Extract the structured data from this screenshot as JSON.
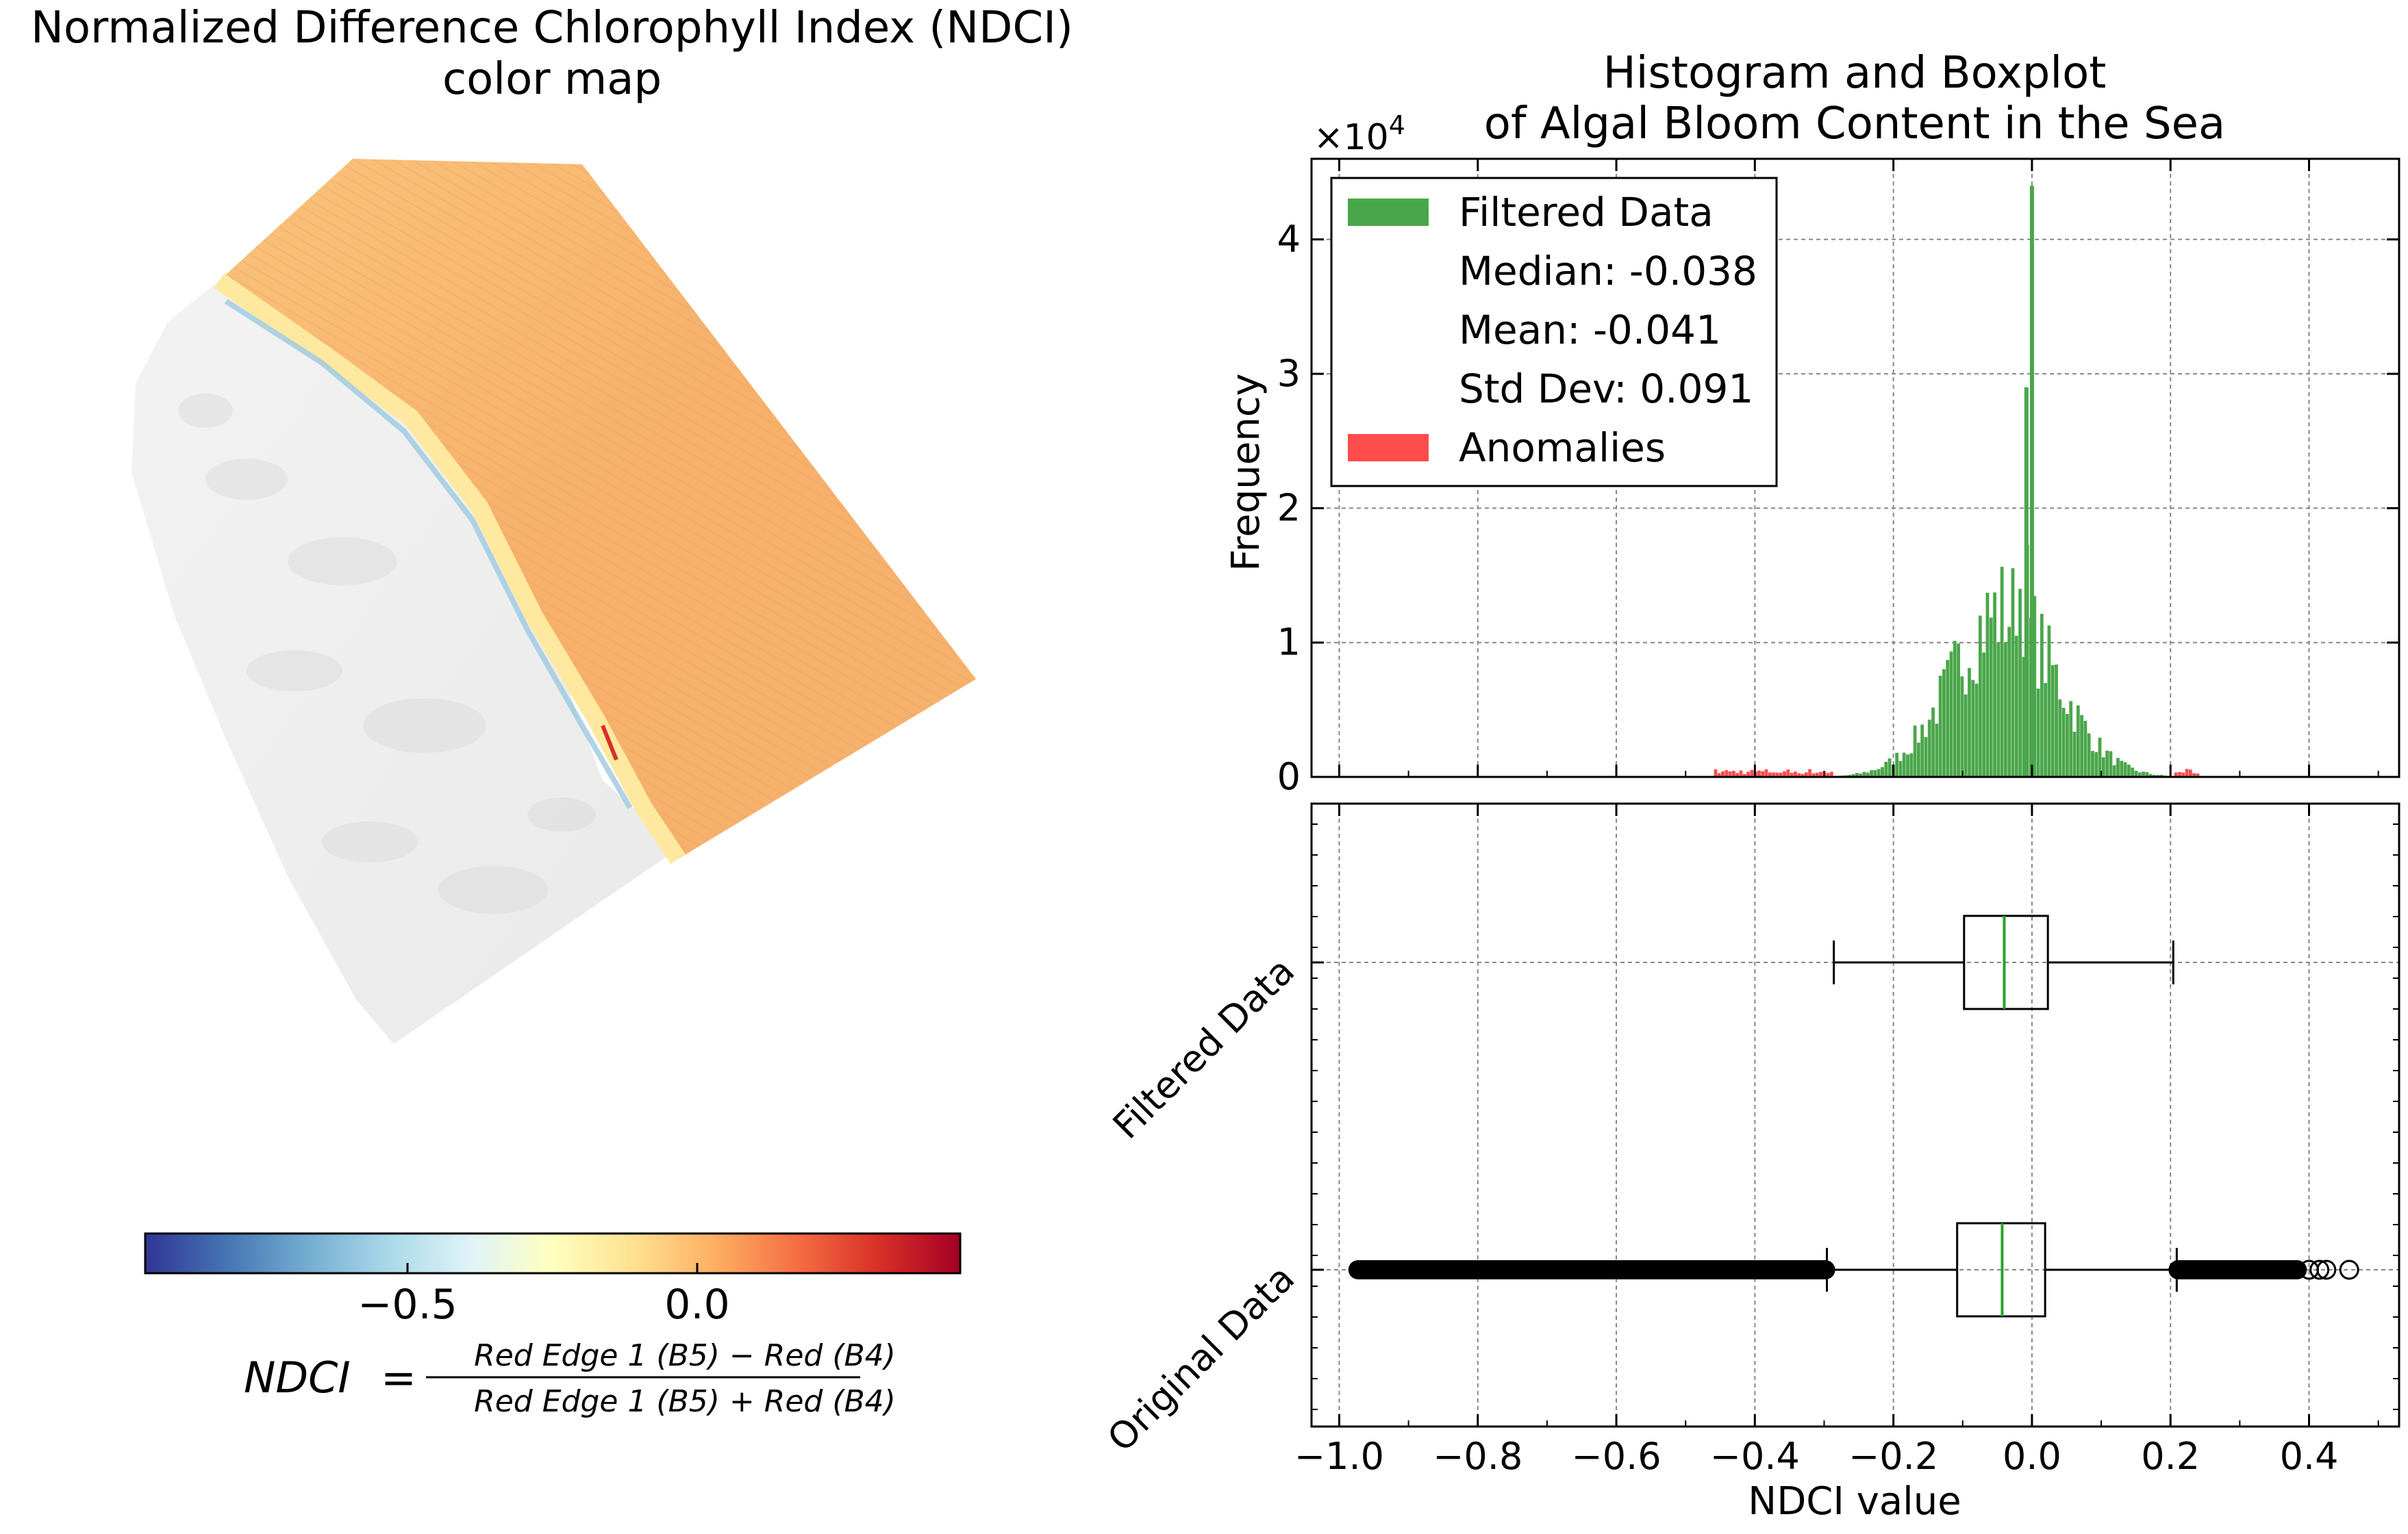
{
  "left_panel": {
    "title_line1": "Normalized Difference Chlorophyll Index (NDCI)",
    "title_line2": "color map",
    "colormap": "RdYlBu_r",
    "colorbar_ticks": [
      "−0.5",
      "0.0"
    ],
    "formula": {
      "lhs": "NDCI",
      "eq": "=",
      "numerator": "Red Edge 1 (B5) − Red (B4)",
      "denominator": "Red Edge 1 (B5) + Red (B4)"
    }
  },
  "chart_data": [
    {
      "type": "bar",
      "title": "Histogram and Boxplot\nof Algal Bloom Content in the Sea",
      "title_line1": "Histogram and Boxplot",
      "title_line2": "of Algal Bloom Content in the Sea",
      "xlabel": "",
      "ylabel": "Frequency",
      "y_multiplier": "×10",
      "y_multiplier_exp": "4",
      "xlim": [
        -1.04,
        0.53
      ],
      "ylim": [
        0,
        4.6
      ],
      "y_ticks": [
        0,
        1,
        2,
        3,
        4
      ],
      "y_tick_labels": [
        "0",
        "1",
        "2",
        "3",
        "4"
      ],
      "grid": true,
      "legend_position": "top-left",
      "legend": {
        "filtered": "Filtered Data",
        "median": "Median: -0.038",
        "mean": "Mean: -0.041",
        "std": "Std Dev: 0.091",
        "anomalies": "Anomalies"
      },
      "series": [
        {
          "name": "Filtered Data",
          "color": "#4aa64a",
          "range": [
            -0.287,
            0.206
          ]
        },
        {
          "name": "Anomalies",
          "color": "#ff4d4d",
          "range": [
            -0.46,
            0.24
          ]
        }
      ],
      "peaks": [
        {
          "x": 0.0,
          "y": 4.4
        },
        {
          "x": -0.008,
          "y": 2.9
        }
      ]
    },
    {
      "type": "boxplot",
      "xlabel": "NDCI value",
      "xlim": [
        -1.04,
        0.53
      ],
      "x_ticks": [
        -1.0,
        -0.8,
        -0.6,
        -0.4,
        -0.2,
        0.0,
        0.2,
        0.4
      ],
      "x_tick_labels": [
        "−1.0",
        "−0.8",
        "−0.6",
        "−0.4",
        "−0.2",
        "0.0",
        "0.2",
        "0.4"
      ],
      "categories": [
        "Original Data",
        "Filtered Data"
      ],
      "boxes": [
        {
          "name": "Original Data",
          "whisker_low": -0.296,
          "q1": -0.108,
          "median": -0.043,
          "q3": 0.019,
          "whisker_high": 0.209,
          "outliers_low_range": [
            -0.975,
            -0.296
          ],
          "outliers_high_range": [
            0.209,
            0.385
          ],
          "outliers_extra": [
            0.4,
            0.415,
            0.425,
            0.458
          ]
        },
        {
          "name": "Filtered Data",
          "whisker_low": -0.286,
          "q1": -0.098,
          "median": -0.04,
          "q3": 0.023,
          "whisker_high": 0.204
        }
      ],
      "median_color": "#2ca02c",
      "grid": true
    }
  ]
}
